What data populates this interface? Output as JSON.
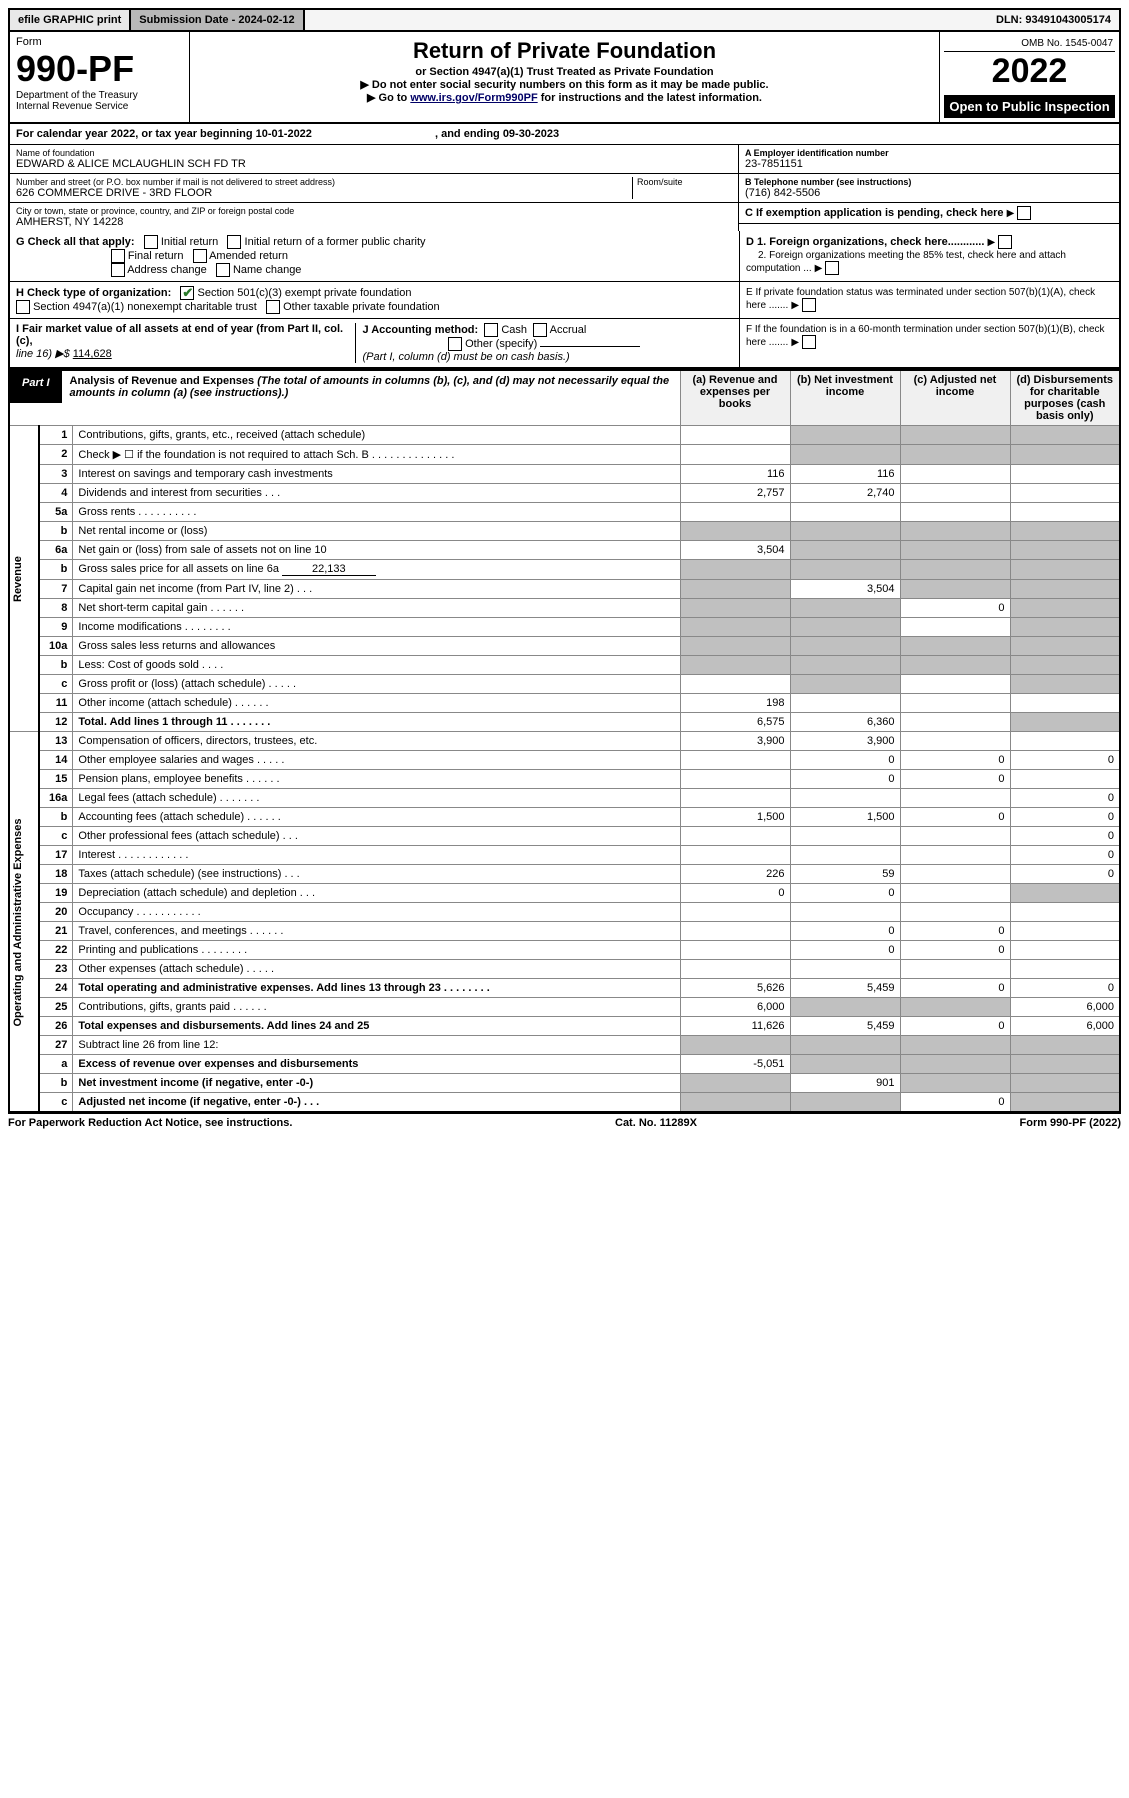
{
  "top": {
    "efile": "efile GRAPHIC print",
    "subdate_label": "Submission Date - ",
    "subdate": "2024-02-12",
    "dln_label": "DLN: ",
    "dln": "93491043005174"
  },
  "header": {
    "form_label": "Form",
    "form_no": "990-PF",
    "dept": "Department of the Treasury",
    "irs": "Internal Revenue Service",
    "title": "Return of Private Foundation",
    "subtitle": "or Section 4947(a)(1) Trust Treated as Private Foundation",
    "note1": "▶ Do not enter social security numbers on this form as it may be made public.",
    "note2_pre": "▶ Go to ",
    "note2_link": "www.irs.gov/Form990PF",
    "note2_post": " for instructions and the latest information.",
    "omb": "OMB No. 1545-0047",
    "year": "2022",
    "open": "Open to Public Inspection"
  },
  "cal": {
    "text": "For calendar year 2022, or tax year beginning 10-01-2022",
    "end": ", and ending 09-30-2023"
  },
  "name": {
    "label": "Name of foundation",
    "value": "EDWARD & ALICE MCLAUGHLIN SCH FD TR",
    "addr_label": "Number and street (or P.O. box number if mail is not delivered to street address)",
    "addr": "626 COMMERCE DRIVE - 3RD FLOOR",
    "room_label": "Room/suite",
    "city_label": "City or town, state or province, country, and ZIP or foreign postal code",
    "city": "AMHERST, NY  14228"
  },
  "ein": {
    "a_label": "A Employer identification number",
    "a": "23-7851151",
    "b_label": "B Telephone number (see instructions)",
    "b": "(716) 842-5506",
    "c": "C If exemption application is pending, check here",
    "d1": "D 1. Foreign organizations, check here............",
    "d2": "2. Foreign organizations meeting the 85% test, check here and attach computation ...",
    "e": "E  If private foundation status was terminated under section 507(b)(1)(A), check here .......",
    "f": "F  If the foundation is in a 60-month termination under section 507(b)(1)(B), check here ......."
  },
  "g": {
    "label": "G Check all that apply:",
    "initial": "Initial return",
    "initial_pub": "Initial return of a former public charity",
    "final": "Final return",
    "amended": "Amended return",
    "addr": "Address change",
    "name": "Name change"
  },
  "h": {
    "label": "H Check type of organization:",
    "c3": "Section 501(c)(3) exempt private foundation",
    "a1": "Section 4947(a)(1) nonexempt charitable trust",
    "other": "Other taxable private foundation"
  },
  "i": {
    "label1": "I Fair market value of all assets at end of year (from Part II, col. (c),",
    "label2": "line 16) ▶$ ",
    "value": "114,628"
  },
  "j": {
    "label": "J Accounting method:",
    "cash": "Cash",
    "accrual": "Accrual",
    "other": "Other (specify)",
    "note": "(Part I, column (d) must be on cash basis.)"
  },
  "part1": {
    "tag": "Part I",
    "title": "Analysis of Revenue and Expenses",
    "note": " (The total of amounts in columns (b), (c), and (d) may not necessarily equal the amounts in column (a) (see instructions).)",
    "col_a": "(a) Revenue and expenses per books",
    "col_b": "(b) Net investment income",
    "col_c": "(c) Adjusted net income",
    "col_d": "(d) Disbursements for charitable purposes (cash basis only)"
  },
  "sections": {
    "rev": "Revenue",
    "ops": "Operating and Administrative Expenses"
  },
  "rows": {
    "r1": {
      "n": "1",
      "label": "Contributions, gifts, grants, etc., received (attach schedule)",
      "shade_bcd": true
    },
    "r2": {
      "n": "2",
      "label": "Check ▶ ☐ if the foundation is not required to attach Sch. B   .  .  .  .  .  .  .  .  .  .  .  .  .  .",
      "shade_bcd": true
    },
    "r3": {
      "n": "3",
      "label": "Interest on savings and temporary cash investments",
      "a": "116",
      "b": "116"
    },
    "r4": {
      "n": "4",
      "label": "Dividends and interest from securities   .   .   .",
      "a": "2,757",
      "b": "2,740"
    },
    "r5a": {
      "n": "5a",
      "label": "Gross rents   .   .   .   .   .   .   .   .   .   ."
    },
    "r5b": {
      "n": "b",
      "label": "Net rental income or (loss)",
      "shade_all": true
    },
    "r6a": {
      "n": "6a",
      "label": "Net gain or (loss) from sale of assets not on line 10",
      "a": "3,504",
      "shade_bcd": true
    },
    "r6b": {
      "n": "b",
      "label": "Gross sales price for all assets on line 6a",
      "inline": "22,133",
      "shade_all": true
    },
    "r7": {
      "n": "7",
      "label": "Capital gain net income (from Part IV, line 2)   .   .   .",
      "b": "3,504",
      "shade_a": true,
      "shade_cd": true
    },
    "r8": {
      "n": "8",
      "label": "Net short-term capital gain  .   .   .   .   .   .",
      "c": "0",
      "shade_ab": true,
      "shade_d": true
    },
    "r9": {
      "n": "9",
      "label": "Income modifications  .   .   .   .   .   .   .   .",
      "shade_ab": true,
      "shade_d": true
    },
    "r10a": {
      "n": "10a",
      "label": "Gross sales less returns and allowances",
      "shade_all": true
    },
    "r10b": {
      "n": "b",
      "label": "Less: Cost of goods sold    .   .   .   .",
      "shade_all": true
    },
    "r10c": {
      "n": "c",
      "label": "Gross profit or (loss) (attach schedule)   .   .   .   .   .",
      "shade_b": true,
      "shade_d": true
    },
    "r11": {
      "n": "11",
      "label": "Other income (attach schedule)   .   .   .   .   .   .",
      "a": "198"
    },
    "r12": {
      "n": "12",
      "label": "Total. Add lines 1 through 11   .   .   .   .   .   .   .",
      "a": "6,575",
      "b": "6,360",
      "bold": true,
      "shade_d": true
    },
    "r13": {
      "n": "13",
      "label": "Compensation of officers, directors, trustees, etc.",
      "a": "3,900",
      "b": "3,900"
    },
    "r14": {
      "n": "14",
      "label": "Other employee salaries and wages   .   .   .   .   .",
      "b": "0",
      "c": "0",
      "d": "0"
    },
    "r15": {
      "n": "15",
      "label": "Pension plans, employee benefits  .   .   .   .   .   .",
      "b": "0",
      "c": "0"
    },
    "r16a": {
      "n": "16a",
      "label": "Legal fees (attach schedule)  .   .   .   .   .   .   .",
      "d": "0"
    },
    "r16b": {
      "n": "b",
      "label": "Accounting fees (attach schedule) .   .   .   .   .   .",
      "a": "1,500",
      "b": "1,500",
      "c": "0",
      "d": "0"
    },
    "r16c": {
      "n": "c",
      "label": "Other professional fees (attach schedule)   .   .   .",
      "d": "0"
    },
    "r17": {
      "n": "17",
      "label": "Interest  .   .   .   .   .   .   .   .   .   .   .   .",
      "d": "0"
    },
    "r18": {
      "n": "18",
      "label": "Taxes (attach schedule) (see instructions)   .   .   .",
      "a": "226",
      "b": "59",
      "d": "0"
    },
    "r19": {
      "n": "19",
      "label": "Depreciation (attach schedule) and depletion   .   .   .",
      "a": "0",
      "b": "0",
      "shade_d": true
    },
    "r20": {
      "n": "20",
      "label": "Occupancy  .   .   .   .   .   .   .   .   .   .   ."
    },
    "r21": {
      "n": "21",
      "label": "Travel, conferences, and meetings .   .   .   .   .   .",
      "b": "0",
      "c": "0"
    },
    "r22": {
      "n": "22",
      "label": "Printing and publications  .   .   .   .   .   .   .   .",
      "b": "0",
      "c": "0"
    },
    "r23": {
      "n": "23",
      "label": "Other expenses (attach schedule)  .   .   .   .   ."
    },
    "r24": {
      "n": "24",
      "label": "Total operating and administrative expenses. Add lines 13 through 23   .   .   .   .   .   .   .   .",
      "a": "5,626",
      "b": "5,459",
      "c": "0",
      "d": "0",
      "bold": true
    },
    "r25": {
      "n": "25",
      "label": "Contributions, gifts, grants paid    .   .   .   .   .   .",
      "a": "6,000",
      "d": "6,000",
      "shade_bc": true
    },
    "r26": {
      "n": "26",
      "label": "Total expenses and disbursements. Add lines 24 and 25",
      "a": "11,626",
      "b": "5,459",
      "c": "0",
      "d": "6,000",
      "bold": true
    },
    "r27": {
      "n": "27",
      "label": "Subtract line 26 from line 12:",
      "shade_all": true
    },
    "r27a": {
      "n": "a",
      "label": "Excess of revenue over expenses and disbursements",
      "a": "-5,051",
      "shade_bcd": true,
      "bold": true
    },
    "r27b": {
      "n": "b",
      "label": "Net investment income (if negative, enter -0-)",
      "b": "901",
      "shade_a": true,
      "shade_cd": true,
      "bold": true
    },
    "r27c": {
      "n": "c",
      "label": "Adjusted net income (if negative, enter -0-)   .   .   .",
      "c": "0",
      "shade_ab": true,
      "shade_d": true,
      "bold": true
    }
  },
  "footer": {
    "left": "For Paperwork Reduction Act Notice, see instructions.",
    "center": "Cat. No. 11289X",
    "right": "Form 990-PF (2022)"
  }
}
